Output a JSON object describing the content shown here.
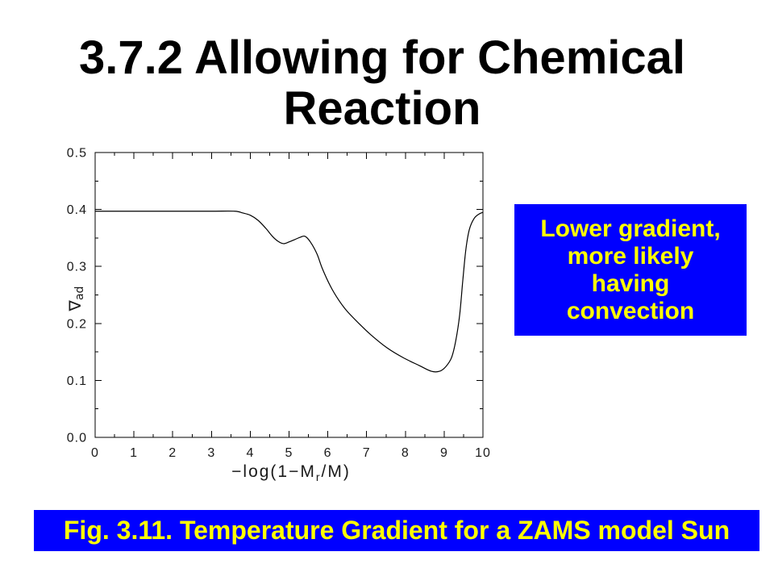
{
  "slide": {
    "title_line1": "3.7.2 Allowing for Chemical",
    "title_line2": "Reaction",
    "callout_lines": [
      "Lower gradient,",
      "more likely",
      "having",
      "convection"
    ],
    "caption": "Fig. 3.11. Temperature Gradient for a ZAMS model Sun"
  },
  "colors": {
    "title_text": "#000000",
    "callout_background": "#0000ff",
    "callout_text": "#ffff00",
    "caption_background": "#0000ff",
    "caption_text": "#ffff00",
    "line": "#000000"
  },
  "chart_data": {
    "type": "line",
    "xlabel": {
      "base": "−log(1−M",
      "subscript": "r",
      "rest": "/M)"
    },
    "ylabel": {
      "base": "∇",
      "subscript": "ad"
    },
    "xlim": [
      0,
      10
    ],
    "ylim": [
      0,
      0.5
    ],
    "xtick_labels": [
      "0",
      "1",
      "2",
      "3",
      "4",
      "5",
      "6",
      "7",
      "8",
      "9",
      "10"
    ],
    "ytick_labels": [
      "0.0",
      "0.1",
      "0.2",
      "0.3",
      "0.4",
      "0.5"
    ],
    "grid": false,
    "series": [
      {
        "x": [
          0,
          1,
          2,
          3,
          3.6,
          3.8,
          4.0,
          4.2,
          4.4,
          4.57,
          4.72,
          4.86,
          5.0,
          5.14,
          5.28,
          5.41,
          5.55,
          5.72,
          5.86,
          6.07,
          6.28,
          6.49,
          6.8,
          7.11,
          7.53,
          7.94,
          8.36,
          8.67,
          8.88,
          9.04,
          9.19,
          9.3,
          9.4,
          9.48,
          9.56,
          9.65,
          9.77,
          9.9,
          10.0
        ],
        "y": [
          0.397,
          0.397,
          0.397,
          0.397,
          0.397,
          0.394,
          0.39,
          0.381,
          0.367,
          0.353,
          0.344,
          0.34,
          0.343,
          0.347,
          0.351,
          0.353,
          0.343,
          0.322,
          0.296,
          0.265,
          0.241,
          0.222,
          0.2,
          0.18,
          0.157,
          0.14,
          0.126,
          0.116,
          0.116,
          0.124,
          0.14,
          0.17,
          0.215,
          0.275,
          0.33,
          0.365,
          0.384,
          0.392,
          0.395
        ]
      }
    ]
  }
}
